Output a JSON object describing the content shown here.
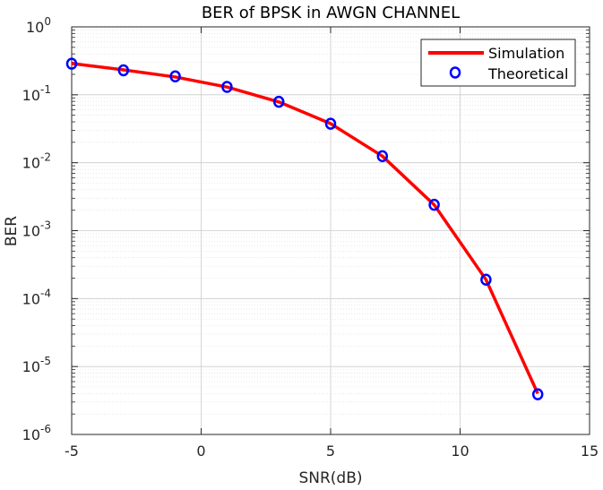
{
  "chart_data": {
    "type": "line",
    "title": "BER of BPSK in AWGN CHANNEL",
    "xlabel": "SNR(dB)",
    "ylabel": "BER",
    "xlim": [
      -5,
      15
    ],
    "ylim": [
      1e-06,
      1
    ],
    "yscale": "log",
    "grid": true,
    "minor_grid": true,
    "legend_position": "top-right",
    "x_ticks": [
      "-5",
      "0",
      "5",
      "10",
      "15"
    ],
    "y_ticks": [
      {
        "base": "10",
        "exp": "-6"
      },
      {
        "base": "10",
        "exp": "-5"
      },
      {
        "base": "10",
        "exp": "-4"
      },
      {
        "base": "10",
        "exp": "-3"
      },
      {
        "base": "10",
        "exp": "-2"
      },
      {
        "base": "10",
        "exp": "-1"
      },
      {
        "base": "10",
        "exp": "0"
      }
    ],
    "x": [
      -5,
      -3,
      -1,
      1,
      3,
      5,
      7,
      9,
      11,
      13
    ],
    "series": [
      {
        "name": "Simulation",
        "style": "line",
        "color": "#ff0000",
        "values": [
          0.289,
          0.233,
          0.183,
          0.13,
          0.0786,
          0.0377,
          0.0125,
          0.0024,
          0.00019,
          4e-06
        ]
      },
      {
        "name": "Theoretical",
        "style": "marker",
        "color": "#0000ff",
        "values": [
          0.2867,
          0.2296,
          0.1866,
          0.1306,
          0.0789,
          0.0375,
          0.0125,
          0.0024,
          0.00019,
          3.9e-06
        ]
      }
    ]
  }
}
